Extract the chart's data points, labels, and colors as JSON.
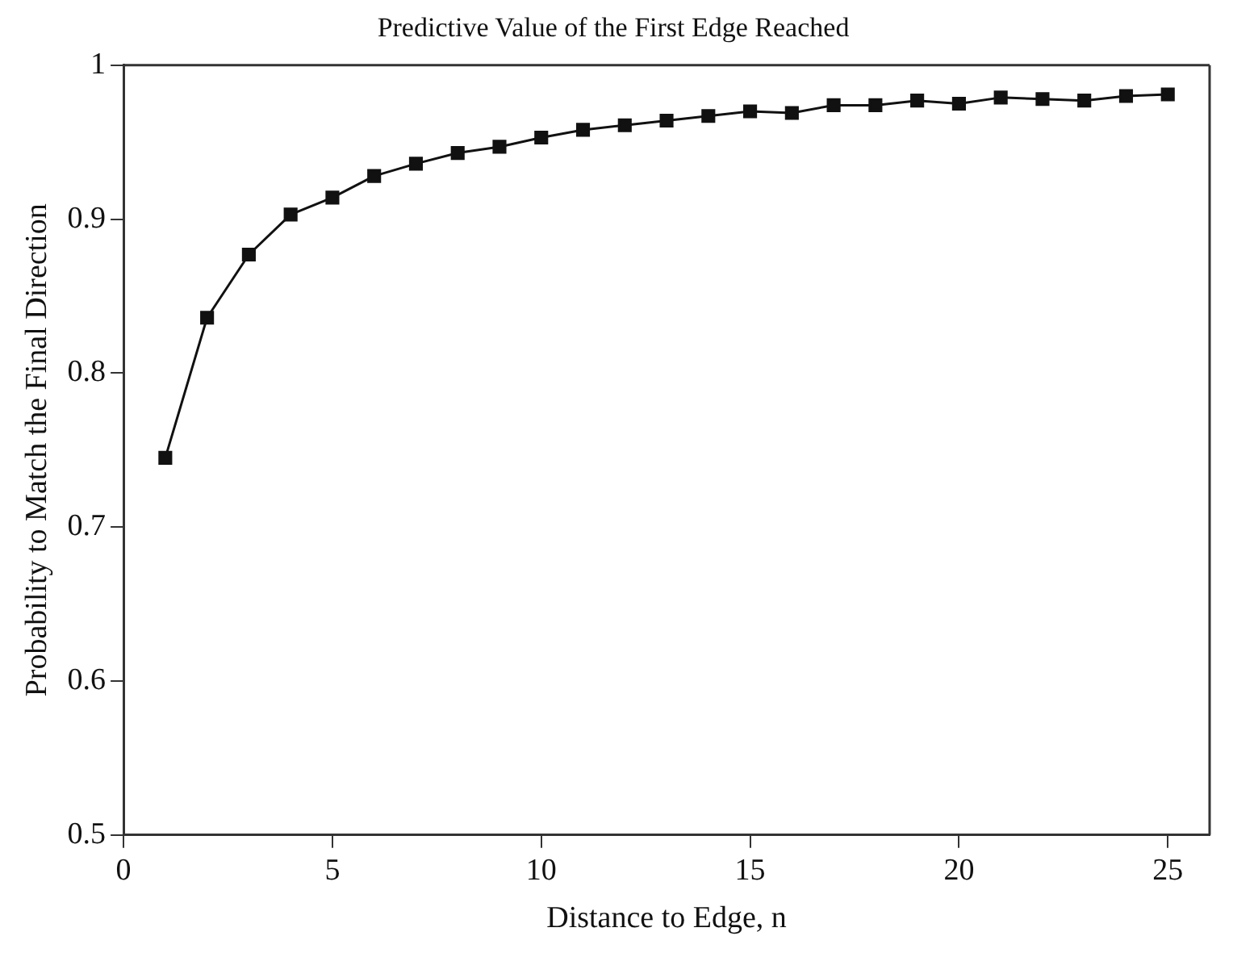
{
  "chart_data": {
    "type": "line",
    "title": "Predictive Value of the First Edge Reached",
    "xlabel": "Distance to Edge, n",
    "ylabel": "Probability to Match the Final Direction",
    "x": [
      1,
      2,
      3,
      4,
      5,
      6,
      7,
      8,
      9,
      10,
      11,
      12,
      13,
      14,
      15,
      16,
      17,
      18,
      19,
      20,
      21,
      22,
      23,
      24,
      25
    ],
    "series": [
      {
        "color": "#111111",
        "values": [
          0.745,
          0.836,
          0.877,
          0.903,
          0.914,
          0.928,
          0.936,
          0.943,
          0.947,
          0.953,
          0.958,
          0.961,
          0.964,
          0.967,
          0.97,
          0.969,
          0.974,
          0.974,
          0.977,
          0.975,
          0.979,
          0.978,
          0.977,
          0.98,
          0.981
        ]
      }
    ],
    "xlim": [
      0,
      26
    ],
    "xticks": [
      0,
      5,
      10,
      15,
      20,
      25
    ],
    "ylim": [
      0.5,
      1
    ],
    "yticks": [
      0.5,
      0.6,
      0.7,
      0.8,
      0.9,
      1
    ],
    "marker": "square",
    "line_style": "solid",
    "grid": false,
    "legend": false
  }
}
